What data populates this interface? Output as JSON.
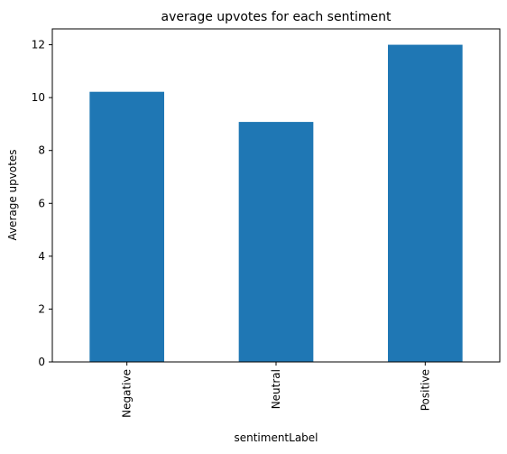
{
  "chart_data": {
    "type": "bar",
    "title": "average upvotes for each sentiment",
    "xlabel": "sentimentLabel",
    "ylabel": "Average upvotes",
    "categories": [
      "Negative",
      "Neutral",
      "Positive"
    ],
    "values": [
      10.22,
      9.08,
      12.0
    ],
    "ylim": [
      0,
      12.6
    ],
    "yticks": [
      0,
      2,
      4,
      6,
      8,
      10,
      12
    ],
    "bar_color": "#1f77b4",
    "grid": false,
    "legend": "none"
  }
}
